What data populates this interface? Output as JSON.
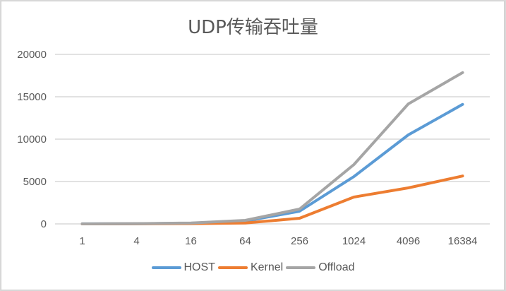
{
  "chart_data": {
    "type": "line",
    "title": "UDP传输吞吐量",
    "xlabel": "",
    "ylabel": "",
    "categories": [
      "1",
      "4",
      "16",
      "64",
      "256",
      "1024",
      "4096",
      "16384"
    ],
    "series": [
      {
        "name": "HOST",
        "color": "#5b9bd5",
        "values": [
          5,
          20,
          80,
          330,
          1500,
          5580,
          10500,
          14100
        ]
      },
      {
        "name": "Kernel",
        "color": "#ed7d31",
        "values": [
          2,
          8,
          30,
          100,
          670,
          3170,
          4250,
          5650
        ]
      },
      {
        "name": "Offload",
        "color": "#a5a5a5",
        "values": [
          8,
          30,
          110,
          420,
          1750,
          7000,
          14150,
          17850
        ]
      }
    ],
    "ylim": [
      0,
      20000
    ],
    "yticks": [
      "0",
      "5000",
      "10000",
      "15000",
      "20000"
    ],
    "grid": true,
    "legend_position": "bottom"
  }
}
